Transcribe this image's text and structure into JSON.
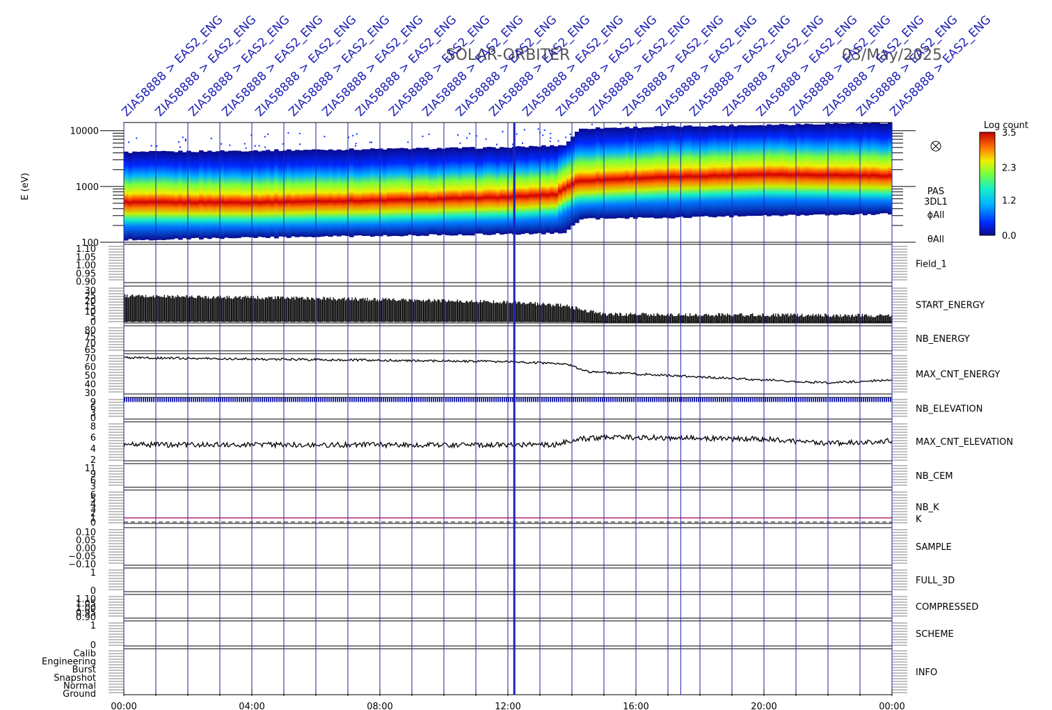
{
  "header": {
    "mission": "SOLAR-ORBITER",
    "date": "03/May/2025",
    "event_labels": [
      "ZIA58888 > EAS2_ENG",
      "ZIA58888 > EAS2_ENG",
      "ZIA58888 > EAS2_ENG",
      "ZIA58888 > EAS2_ENG",
      "ZIA58888 > EAS2_ENG",
      "ZIA58888 > EAS2_ENG",
      "ZIA58888 > EAS2_ENG",
      "ZIA58888 > EAS2_ENG",
      "ZIA58888 > EAS2_ENG",
      "ZIA58888 > EAS2_ENG",
      "ZIA58888 > EAS2_ENG",
      "ZIA58888 > EAS2_ENG",
      "ZIA58888 > EAS2_ENG",
      "ZIA58888 > EAS2_ENG",
      "ZIA58888 > EAS2_ENG",
      "ZIA58888 > EAS2_ENG",
      "ZIA58888 > EAS2_ENG",
      "ZIA58888 > EAS2_ENG",
      "ZIA58888 > EAS2_ENG",
      "ZIA58888 > EAS2_ENG",
      "ZIA58888 > EAS2_ENG",
      "ZIA58888 > EAS2_ENG",
      "ZIA58888 > EAS2_ENG",
      "ZIA58888 > EAS2_ENG"
    ]
  },
  "chart_data": {
    "type": "heatmap",
    "x_ticks": [
      "00:00",
      "04:00",
      "08:00",
      "12:00",
      "16:00",
      "20:00",
      "00:00"
    ],
    "x_range_hours": [
      0,
      24
    ],
    "event_hours": [
      0,
      1,
      2,
      3,
      4,
      5,
      6,
      7,
      8,
      9,
      10,
      11,
      12,
      12.2,
      13,
      14,
      15,
      16,
      17,
      17.4,
      18,
      19,
      20,
      21,
      22,
      23,
      24
    ],
    "spectrogram": {
      "ylabel": "E (eV)",
      "y_scale": "log",
      "y_range": [
        100,
        14000
      ],
      "y_ticks": [
        "100",
        "1000",
        "10000"
      ],
      "instrument_labels": [
        "PAS",
        "3DL1",
        "ϕAll",
        "θAll"
      ],
      "colorbar": {
        "title": "Log count",
        "ticks": [
          "3.5",
          "2.3",
          "1.2",
          "0.0"
        ],
        "range": [
          0.0,
          3.5
        ]
      },
      "peak_energy_ev": [
        {
          "hour": 0,
          "value": 520
        },
        {
          "hour": 4,
          "value": 520
        },
        {
          "hour": 8,
          "value": 560
        },
        {
          "hour": 12,
          "value": 640
        },
        {
          "hour": 13.5,
          "value": 720
        },
        {
          "hour": 14.2,
          "value": 1250
        },
        {
          "hour": 16,
          "value": 1400
        },
        {
          "hour": 20,
          "value": 1650
        },
        {
          "hour": 24,
          "value": 1550
        }
      ],
      "upper_cutoff_ev": [
        {
          "hour": 0,
          "value": 4100
        },
        {
          "hour": 12,
          "value": 5000
        },
        {
          "hour": 13.8,
          "value": 5500
        },
        {
          "hour": 14.3,
          "value": 11000
        },
        {
          "hour": 24,
          "value": 14000
        }
      ],
      "lower_cutoff_ev": [
        {
          "hour": 0,
          "value": 110
        },
        {
          "hour": 13.8,
          "value": 145
        },
        {
          "hour": 14.3,
          "value": 260
        },
        {
          "hour": 24,
          "value": 320
        }
      ]
    },
    "panels": [
      {
        "label": "Field_1",
        "color": "#1e22b4",
        "ticks": [
          "1.10",
          "1.05",
          "1.00",
          "0.95",
          "0.90"
        ],
        "range": [
          0.9,
          1.1
        ]
      },
      {
        "label": "START_ENERGY",
        "color": "#000000",
        "ticks": [
          "30",
          "25",
          "20",
          "15",
          "10",
          "5",
          "0"
        ],
        "range": [
          0,
          30
        ],
        "trace": [
          {
            "hour": 0,
            "value": 22
          },
          {
            "hour": 6,
            "value": 20
          },
          {
            "hour": 12,
            "value": 17
          },
          {
            "hour": 13.8,
            "value": 14
          },
          {
            "hour": 15,
            "value": 7
          },
          {
            "hour": 24,
            "value": 6
          }
        ]
      },
      {
        "label": "NB_ENERGY",
        "color": "#1e22b4",
        "ticks": [
          "80",
          "75",
          "70",
          "65"
        ],
        "range": [
          62,
          80
        ]
      },
      {
        "label": "MAX_CNT_ENERGY",
        "color": "#000000",
        "ticks": [
          "70",
          "60",
          "50",
          "40",
          "30"
        ],
        "range": [
          30,
          70
        ],
        "trace": [
          {
            "hour": 0,
            "value": 66
          },
          {
            "hour": 6,
            "value": 64
          },
          {
            "hour": 12,
            "value": 62
          },
          {
            "hour": 13.8,
            "value": 60
          },
          {
            "hour": 14.5,
            "value": 52
          },
          {
            "hour": 18,
            "value": 47
          },
          {
            "hour": 20,
            "value": 44
          },
          {
            "hour": 22,
            "value": 41
          },
          {
            "hour": 24,
            "value": 44
          }
        ]
      },
      {
        "label": "NB_ELEVATION",
        "color": "#1e22b4",
        "ticks": [
          "9",
          "6",
          "3",
          "0"
        ],
        "range": [
          0,
          9
        ],
        "level": 8
      },
      {
        "label": "MAX_CNT_ELEVATION",
        "color": "#000000",
        "ticks": [
          "8",
          "6",
          "4",
          "2"
        ],
        "range": [
          0,
          9
        ],
        "trace": [
          {
            "hour": 0,
            "value": 3.7
          },
          {
            "hour": 13.5,
            "value": 3.7
          },
          {
            "hour": 14,
            "value": 4.8
          },
          {
            "hour": 15,
            "value": 5.5
          },
          {
            "hour": 20,
            "value": 5.0
          },
          {
            "hour": 22,
            "value": 4.0
          },
          {
            "hour": 24,
            "value": 4.6
          }
        ]
      },
      {
        "label": "NB_CEM",
        "color": "#1e22b4",
        "ticks": [
          "11",
          "9",
          "6",
          "3"
        ],
        "range": [
          0,
          11
        ]
      },
      {
        "label": "NB_K",
        "color": "#c81e1e",
        "label2": "K",
        "label2_color": "#1e22b4",
        "ticks": [
          "6",
          "5",
          "4",
          "3",
          "2",
          "1",
          "0"
        ],
        "range": [
          0,
          6
        ],
        "level": 1
      },
      {
        "label": "SAMPLE",
        "color": "#1e22b4",
        "ticks": [
          "0.10",
          "0.05",
          "0.00",
          "−0.05",
          "−0.10"
        ],
        "range": [
          -0.1,
          0.1
        ]
      },
      {
        "label": "FULL_3D",
        "color": "#1e22b4",
        "ticks": [
          "1",
          "0"
        ],
        "range": [
          0,
          1
        ]
      },
      {
        "label": "COMPRESSED",
        "color": "#000000",
        "ticks": [
          "1.10",
          "1.05",
          "1.00",
          "0.95",
          "0.90"
        ],
        "range": [
          0.9,
          1.1
        ]
      },
      {
        "label": "SCHEME",
        "color": "#000000",
        "ticks": [
          "1",
          "0"
        ],
        "range": [
          0,
          1
        ]
      },
      {
        "label": "INFO",
        "color": "#000000",
        "ticks": [
          "Calib",
          "Engineering",
          "Burst",
          "Snapshot",
          "Normal",
          "Ground"
        ]
      }
    ]
  }
}
